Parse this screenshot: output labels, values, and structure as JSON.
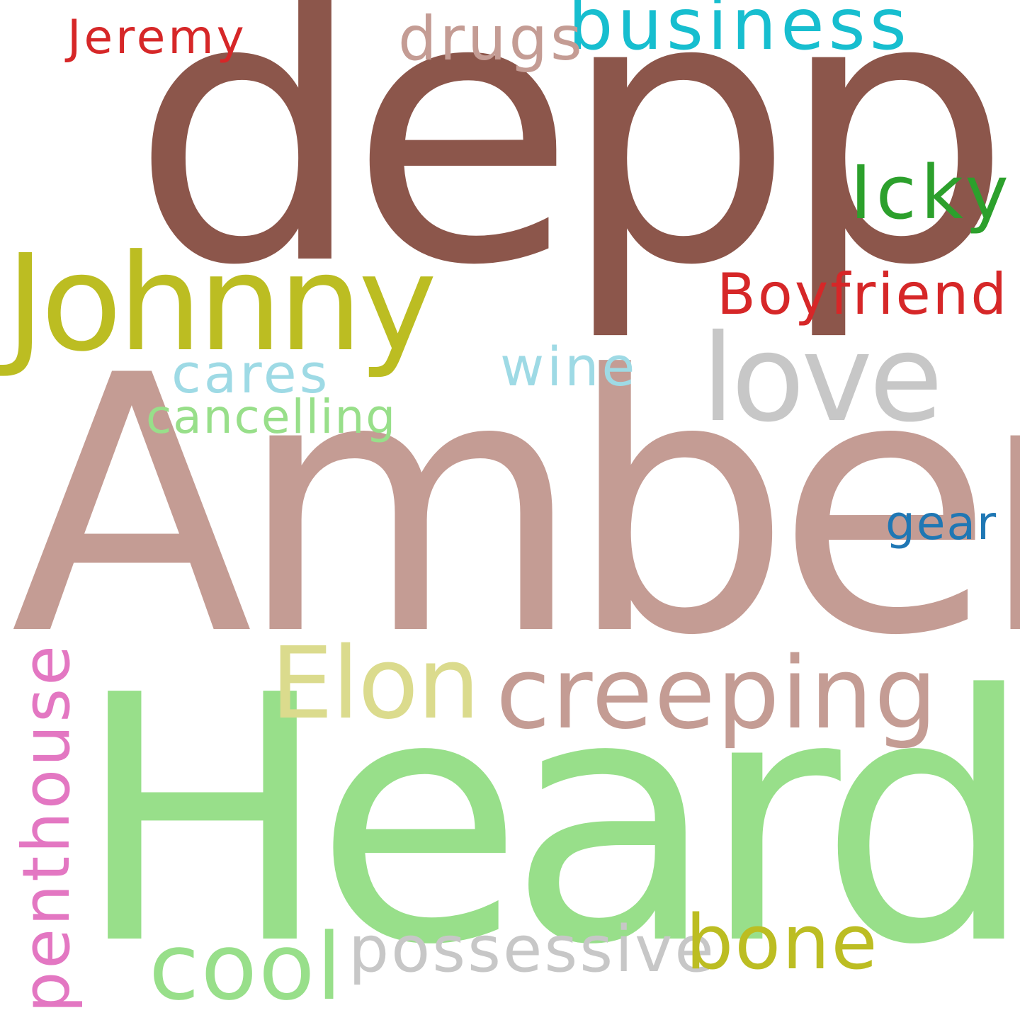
{
  "words": [
    {
      "key": "depp",
      "text": "depp",
      "color": "#8c564b"
    },
    {
      "key": "amber",
      "text": "Amber",
      "color": "#c49c94"
    },
    {
      "key": "heard",
      "text": "Heard",
      "color": "#98df8a"
    },
    {
      "key": "johnny",
      "text": "Johnny",
      "color": "#bcbd22"
    },
    {
      "key": "love",
      "text": "love",
      "color": "#c7c7c7"
    },
    {
      "key": "business",
      "text": "business",
      "color": "#17becf"
    },
    {
      "key": "drugs",
      "text": "drugs",
      "color": "#c49c94"
    },
    {
      "key": "jeremy",
      "text": "Jeremy",
      "color": "#d62728"
    },
    {
      "key": "icky",
      "text": "Icky",
      "color": "#2ca02c"
    },
    {
      "key": "boyfriend",
      "text": "Boyfriend",
      "color": "#d62728"
    },
    {
      "key": "cares",
      "text": "cares",
      "color": "#9edae5"
    },
    {
      "key": "wine",
      "text": "wine",
      "color": "#9edae5"
    },
    {
      "key": "cancelling",
      "text": "cancelling",
      "color": "#98df8a"
    },
    {
      "key": "gear",
      "text": "gear",
      "color": "#1f77b4"
    },
    {
      "key": "elon",
      "text": "Elon",
      "color": "#dbdb8d"
    },
    {
      "key": "creeping",
      "text": "creeping",
      "color": "#c49c94"
    },
    {
      "key": "penthouse",
      "text": "penthouse",
      "color": "#e377c2"
    },
    {
      "key": "cool",
      "text": "cool",
      "color": "#98df8a"
    },
    {
      "key": "possessive",
      "text": "possessive",
      "color": "#c7c7c7"
    },
    {
      "key": "bone",
      "text": "bone",
      "color": "#bcbd22"
    }
  ]
}
